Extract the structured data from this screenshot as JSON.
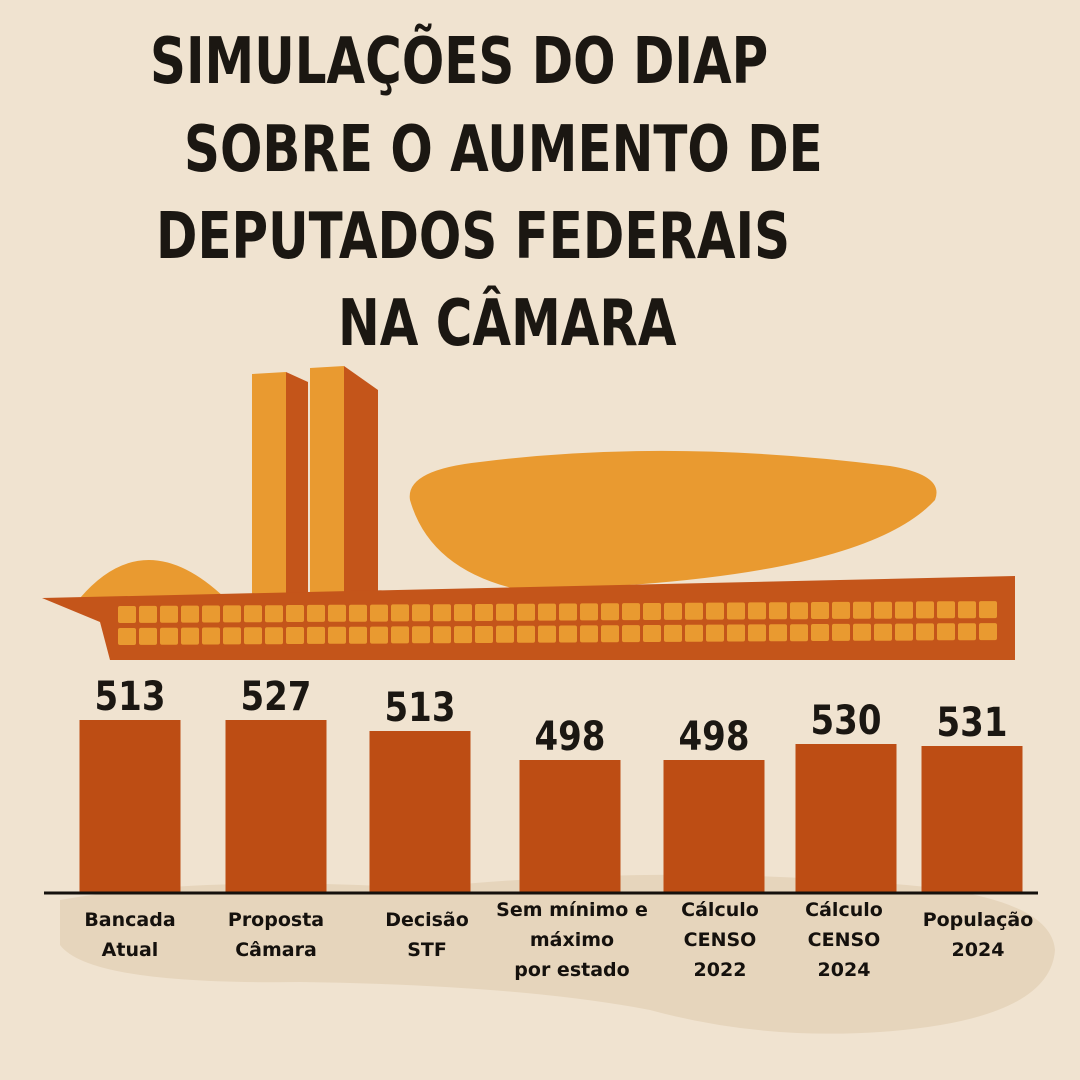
{
  "title_lines": [
    "SIMULAÇÕES DO DIAP",
    "SOBRE O AUMENTO DE",
    "DEPUTADOS FEDERAIS",
    "NA CÂMARA"
  ],
  "colors": {
    "background": "#f0e3d0",
    "bar": "#bd4d14",
    "building_orange": "#e99a30",
    "building_dark": "#c4551a",
    "text": "#1b1712"
  },
  "chart_data": {
    "type": "bar",
    "categories": [
      [
        "Bancada",
        "Atual"
      ],
      [
        "Proposta",
        "Câmara"
      ],
      [
        "Decisão",
        "STF"
      ],
      [
        "Sem mínimo e",
        "máximo",
        "por estado"
      ],
      [
        "Cálculo",
        "CENSO",
        "2022"
      ],
      [
        "Cálculo",
        "CENSO",
        "2024"
      ],
      [
        "População",
        "2024"
      ]
    ],
    "values": [
      513,
      527,
      513,
      498,
      498,
      530,
      531
    ],
    "value_labels": [
      "513",
      "527",
      "513",
      "498",
      "498",
      "530",
      "531"
    ]
  }
}
